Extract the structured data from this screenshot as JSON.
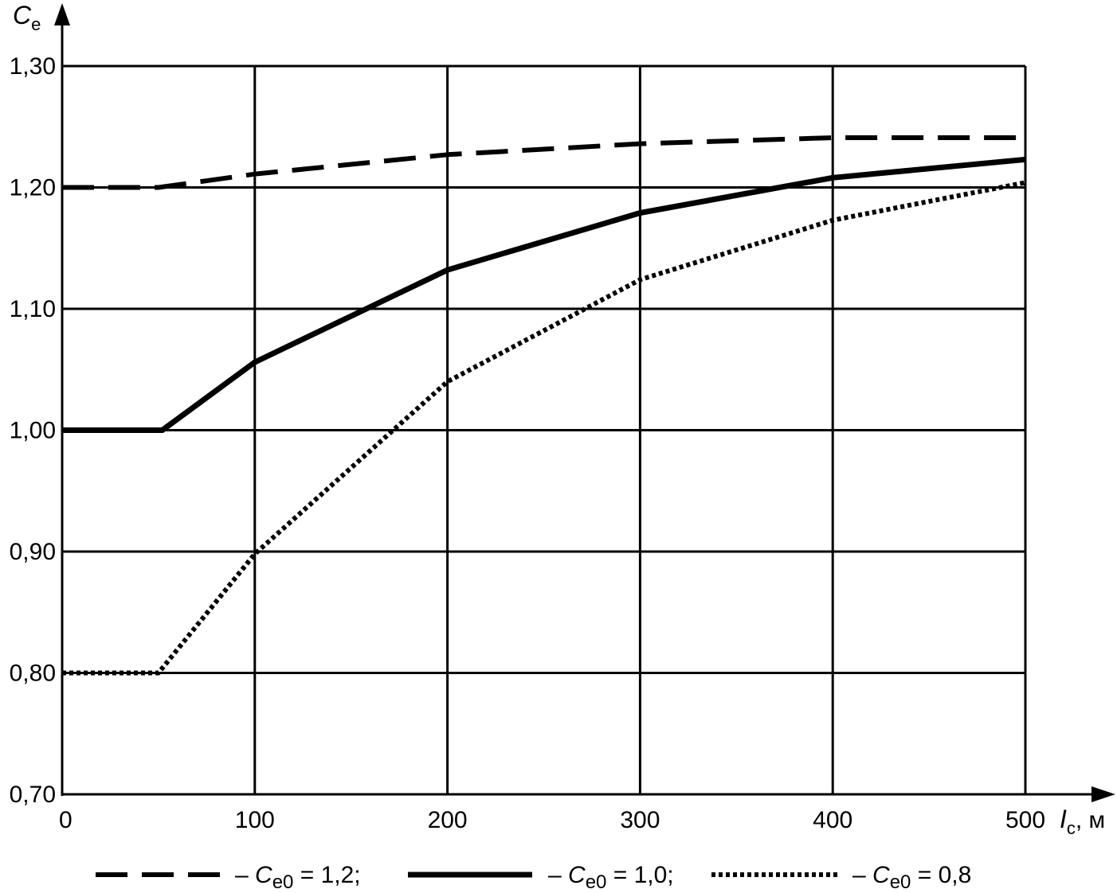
{
  "chart_data": {
    "type": "line",
    "y_axis": {
      "symbol": "C",
      "subscript": "e",
      "unit": ""
    },
    "x_axis": {
      "symbol": "I",
      "subscript": "c",
      "unit": ", м"
    },
    "xlim": [
      0,
      500
    ],
    "ylim": [
      0.7,
      1.3
    ],
    "x_ticks": [
      0,
      100,
      200,
      300,
      400,
      500
    ],
    "x_tick_labels": [
      "0",
      "100",
      "200",
      "300",
      "400",
      "500"
    ],
    "y_ticks": [
      0.7,
      0.8,
      0.9,
      1.0,
      1.1,
      1.2,
      1.3
    ],
    "y_tick_labels": [
      "0,70",
      "0,80",
      "0,90",
      "1,00",
      "1,10",
      "1,20",
      "1,30"
    ],
    "grid": true,
    "legend_position": "bottom",
    "series": [
      {
        "name": "Ce0 = 1,2",
        "legend_label": {
          "dash": "– ",
          "symbol": "C",
          "subscript": "e0",
          "value": " = 1,2;"
        },
        "style": "dashed",
        "x": [
          0,
          50,
          100,
          200,
          300,
          400,
          500
        ],
        "y": [
          1.2,
          1.2,
          1.211,
          1.227,
          1.236,
          1.241,
          1.241
        ]
      },
      {
        "name": "Ce0 = 1,0",
        "legend_label": {
          "dash": "– ",
          "symbol": "C",
          "subscript": "e0",
          "value": " = 1,0;"
        },
        "style": "solid",
        "x": [
          0,
          52,
          100,
          200,
          300,
          400,
          500
        ],
        "y": [
          1.0,
          1.0,
          1.056,
          1.132,
          1.179,
          1.208,
          1.223
        ]
      },
      {
        "name": "Ce0 = 0,8",
        "legend_label": {
          "dash": "– ",
          "symbol": "C",
          "subscript": "e0",
          "value": " = 0,8"
        },
        "style": "dotted",
        "x": [
          0,
          50,
          100,
          200,
          300,
          400,
          500
        ],
        "y": [
          0.8,
          0.8,
          0.898,
          1.04,
          1.124,
          1.173,
          1.204
        ]
      }
    ]
  }
}
